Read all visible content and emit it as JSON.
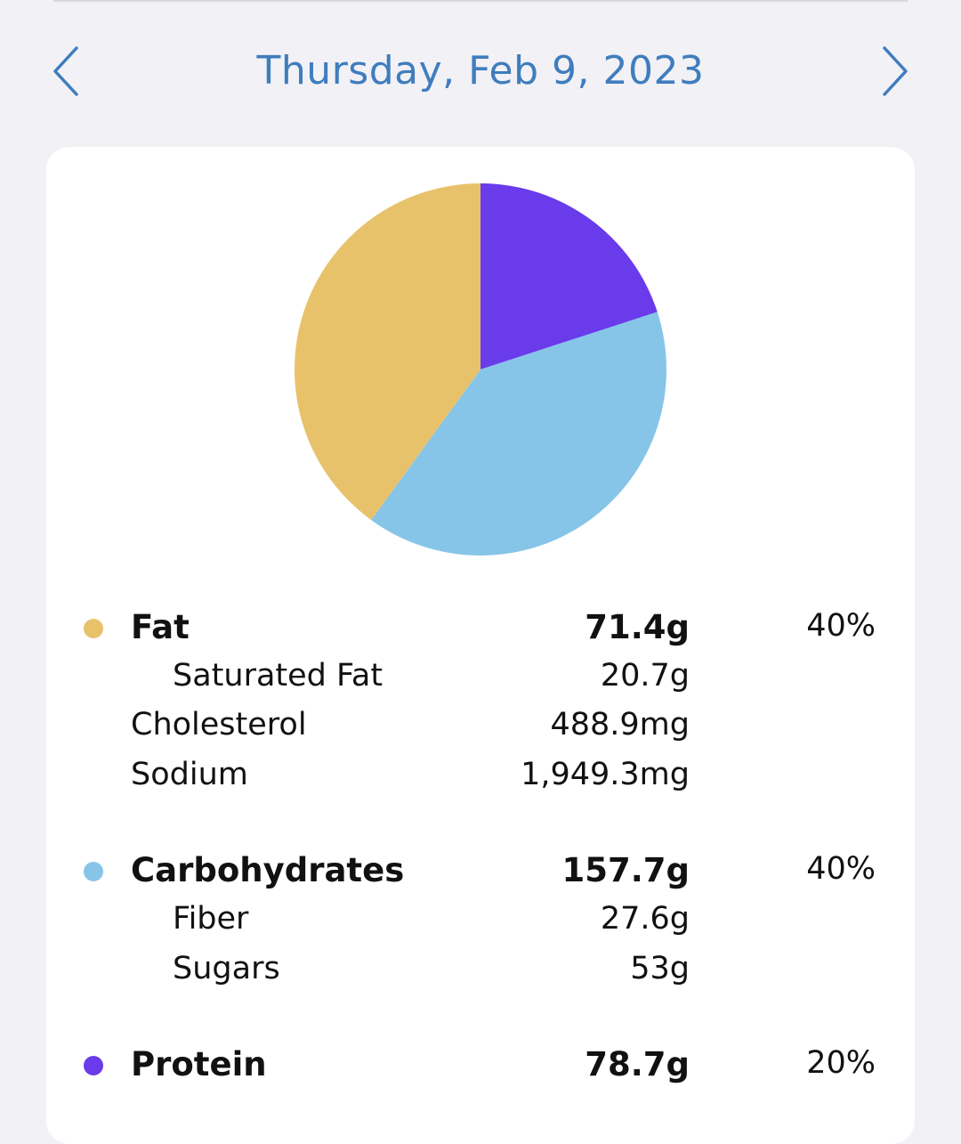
{
  "header": {
    "date": "Thursday, Feb 9, 2023",
    "prev_icon": "chevron-left-icon",
    "next_icon": "chevron-right-icon",
    "accent_color": "#3f7dbd"
  },
  "chart_data": {
    "type": "pie",
    "slices": [
      {
        "name": "Protein",
        "value": 20,
        "color": "#6a3bea"
      },
      {
        "name": "Carbohydrates",
        "value": 40,
        "color": "#86c5e8"
      },
      {
        "name": "Fat",
        "value": 40,
        "color": "#e8c26b"
      }
    ]
  },
  "nutrients": {
    "fat": {
      "label": "Fat",
      "amount": "71.4g",
      "percent": "40%",
      "color": "#e8c26b"
    },
    "saturated_fat": {
      "label": "Saturated Fat",
      "amount": "20.7g"
    },
    "cholesterol": {
      "label": "Cholesterol",
      "amount": "488.9mg"
    },
    "sodium": {
      "label": "Sodium",
      "amount": "1,949.3mg"
    },
    "carbohydrates": {
      "label": "Carbohydrates",
      "amount": "157.7g",
      "percent": "40%",
      "color": "#86c5e8"
    },
    "fiber": {
      "label": "Fiber",
      "amount": "27.6g"
    },
    "sugars": {
      "label": "Sugars",
      "amount": "53g"
    },
    "protein": {
      "label": "Protein",
      "amount": "78.7g",
      "percent": "20%",
      "color": "#6a3bea"
    }
  }
}
